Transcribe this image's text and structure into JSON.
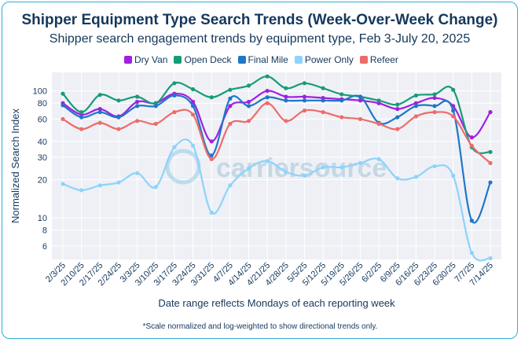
{
  "chart_data": {
    "type": "line",
    "title": "Shipper Equipment Type Search Trends (Week-Over-Week Change)",
    "subtitle": "Shipper search engagement trends by equipment type, Feb 3-July 20, 2025",
    "xlabel": "Date range reflects Mondays of each reporting week",
    "ylabel": "Normalized Search Index",
    "footnote": "*Scale normalized and log-weighted to show directional trends only.",
    "watermark": "carriersource",
    "yscale": "log",
    "ylim": [
      4.7,
      140
    ],
    "yticks": [
      6,
      8,
      10,
      20,
      30,
      40,
      60,
      80,
      100
    ],
    "ytick_labels": [
      "6",
      "8",
      "10",
      "20",
      "30",
      "40",
      "60",
      "80",
      "100"
    ],
    "categories": [
      "2/3/25",
      "2/10/25",
      "2/17/25",
      "2/24/25",
      "3/3/25",
      "3/10/25",
      "3/17/25",
      "3/24/25",
      "3/31/25",
      "4/7/25",
      "4/14/25",
      "4/21/25",
      "4/28/25",
      "5/5/25",
      "5/12/25",
      "5/19/25",
      "5/26/25",
      "6/2/25",
      "6/9/25",
      "6/16/25",
      "6/23/25",
      "6/30/25",
      "7/7/25",
      "7/14/25"
    ],
    "series": [
      {
        "name": "Dry Van",
        "color": "#a020e0",
        "values": [
          80,
          65,
          72,
          63,
          82,
          80,
          95,
          82,
          40,
          76,
          82,
          100,
          90,
          90,
          88,
          86,
          84,
          80,
          72,
          80,
          88,
          76,
          43,
          68
        ]
      },
      {
        "name": "Open Deck",
        "color": "#179b78",
        "values": [
          95,
          68,
          93,
          84,
          90,
          80,
          115,
          103,
          89,
          102,
          110,
          130,
          105,
          115,
          105,
          94,
          90,
          84,
          78,
          92,
          94,
          102,
          36,
          33
        ]
      },
      {
        "name": "Final Mile",
        "color": "#1f77c8",
        "values": [
          77,
          62,
          68,
          62,
          76,
          76,
          92,
          76,
          31,
          87,
          76,
          89,
          84,
          84,
          84,
          84,
          90,
          56,
          62,
          76,
          76,
          70,
          9.5,
          19
        ]
      },
      {
        "name": "Power Only",
        "color": "#8dd3fb",
        "values": [
          18.5,
          16.5,
          18,
          19,
          22.5,
          17.5,
          36,
          37,
          11,
          18,
          24.5,
          28,
          23,
          21.5,
          25,
          25,
          27,
          29,
          20.5,
          21,
          25.5,
          21.5,
          5.3,
          4.8
        ]
      },
      {
        "name": "Refeer",
        "color": "#ee6b6b",
        "values": [
          60,
          50,
          56,
          50,
          58,
          55,
          68,
          65,
          29,
          55,
          58,
          80,
          58,
          70,
          68,
          62,
          60,
          55,
          50,
          63,
          68,
          63,
          37,
          27
        ]
      }
    ]
  }
}
